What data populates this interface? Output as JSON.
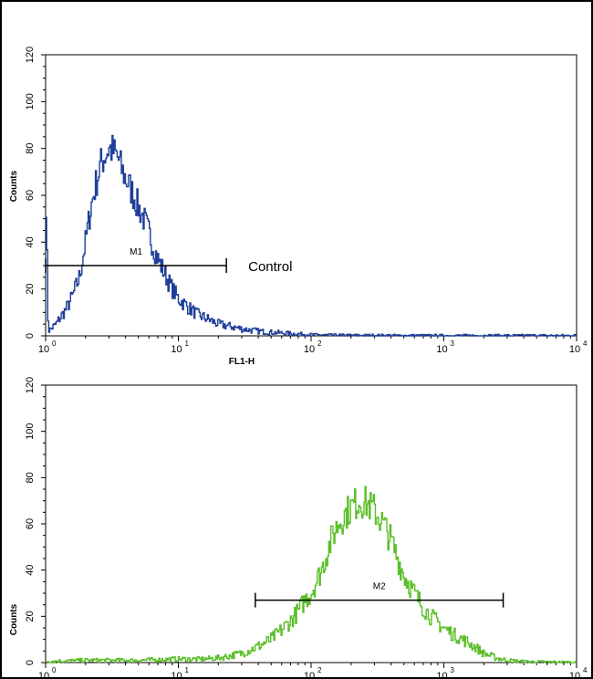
{
  "chart_data": [
    {
      "type": "line",
      "title": "",
      "xlabel": "FL1-H",
      "ylabel": "Counts",
      "x_scale": "log",
      "xlim": [
        1,
        10000
      ],
      "ylim": [
        0,
        120
      ],
      "x_ticks": [
        {
          "base": "10",
          "exp": "0"
        },
        {
          "base": "10",
          "exp": "1"
        },
        {
          "base": "10",
          "exp": "2"
        },
        {
          "base": "10",
          "exp": "3"
        },
        {
          "base": "10",
          "exp": "4"
        }
      ],
      "y_ticks": [
        "0",
        "20",
        "40",
        "60",
        "80",
        "100",
        "120"
      ],
      "grid": false,
      "series": [
        {
          "color": "#1f3f9a",
          "x": [
            1,
            1.05,
            1.1,
            1.2,
            1.3,
            1.45,
            1.6,
            1.8,
            2.0,
            2.2,
            2.4,
            2.6,
            2.8,
            3.0,
            3.2,
            3.5,
            3.8,
            4.2,
            4.6,
            5.0,
            5.5,
            6.0,
            6.5,
            7.0,
            8.0,
            9.0,
            10,
            12,
            14,
            17,
            20,
            25,
            30,
            40,
            50,
            70,
            100,
            150,
            200,
            300,
            500,
            1000,
            2000,
            5000,
            10000
          ],
          "y": [
            70,
            2,
            3,
            5,
            8,
            12,
            17,
            25,
            40,
            55,
            65,
            73,
            77,
            80,
            79,
            76,
            70,
            65,
            60,
            55,
            50,
            44,
            38,
            33,
            26,
            20,
            16,
            12,
            9,
            7,
            5,
            4,
            3,
            2,
            1.5,
            1,
            0.5,
            0.3,
            0.2,
            0.2,
            0.1,
            0.1,
            0.1,
            0.1,
            0.1
          ]
        }
      ],
      "gate": {
        "label": "M1",
        "x_start": 1,
        "x_end": 23,
        "y": 30
      },
      "annotation": "Control"
    },
    {
      "type": "line",
      "title": "",
      "xlabel": "",
      "ylabel": "Counts",
      "x_scale": "log",
      "xlim": [
        1,
        10000
      ],
      "ylim": [
        0,
        120
      ],
      "x_ticks": [
        {
          "base": "10",
          "exp": "0"
        },
        {
          "base": "10",
          "exp": "1"
        },
        {
          "base": "10",
          "exp": "2"
        },
        {
          "base": "10",
          "exp": "3"
        },
        {
          "base": "10",
          "exp": "4"
        }
      ],
      "y_ticks": [
        "0",
        "20",
        "40",
        "60",
        "80",
        "100",
        "120"
      ],
      "grid": false,
      "series": [
        {
          "color": "#5cbf2a",
          "x": [
            1,
            2,
            5,
            10,
            15,
            20,
            25,
            30,
            40,
            50,
            60,
            70,
            80,
            90,
            100,
            120,
            140,
            160,
            180,
            200,
            230,
            260,
            300,
            350,
            400,
            450,
            500,
            600,
            700,
            800,
            1000,
            1200,
            1500,
            1800,
            2000,
            2500,
            3000,
            4000,
            5000,
            7000,
            10000
          ],
          "y": [
            0.5,
            1,
            1,
            1.5,
            1.5,
            2,
            3,
            4,
            7,
            10,
            14,
            18,
            22,
            27,
            30,
            40,
            52,
            60,
            64,
            67,
            70,
            69,
            66,
            60,
            53,
            45,
            38,
            30,
            24,
            20,
            15,
            12,
            9,
            6,
            4,
            2,
            1,
            0.5,
            0.3,
            0.2,
            0.1
          ]
        }
      ],
      "gate": {
        "label": "M2",
        "x_start": 38,
        "x_end": 2800,
        "y": 27
      }
    }
  ]
}
